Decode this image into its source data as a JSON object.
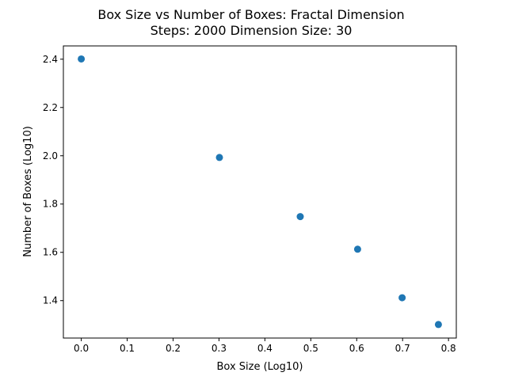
{
  "chart_data": {
    "type": "scatter",
    "title": "Box Size vs Number of Boxes: Fractal Dimension",
    "subtitle": "Steps: 2000 Dimension Size: 30",
    "xlabel": "Box Size (Log10)",
    "ylabel": "Number of Boxes (Log10)",
    "xlim": [
      -0.039,
      0.817
    ],
    "ylim": [
      1.245,
      2.455
    ],
    "xticks": [
      0.0,
      0.1,
      0.2,
      0.3,
      0.4,
      0.5,
      0.6,
      0.7,
      0.8
    ],
    "xtick_labels": [
      "0.0",
      "0.1",
      "0.2",
      "0.3",
      "0.4",
      "0.5",
      "0.6",
      "0.7",
      "0.8"
    ],
    "yticks": [
      1.4,
      1.6,
      1.8,
      2.0,
      2.2,
      2.4
    ],
    "ytick_labels": [
      "1.4",
      "1.6",
      "1.8",
      "2.0",
      "2.2",
      "2.4"
    ],
    "grid": false,
    "marker_color": "#1f77b4",
    "series": [
      {
        "x": [
          0.0,
          0.301,
          0.477,
          0.602,
          0.699,
          0.778
        ],
        "y": [
          2.401,
          1.993,
          1.748,
          1.613,
          1.412,
          1.301
        ]
      }
    ]
  }
}
